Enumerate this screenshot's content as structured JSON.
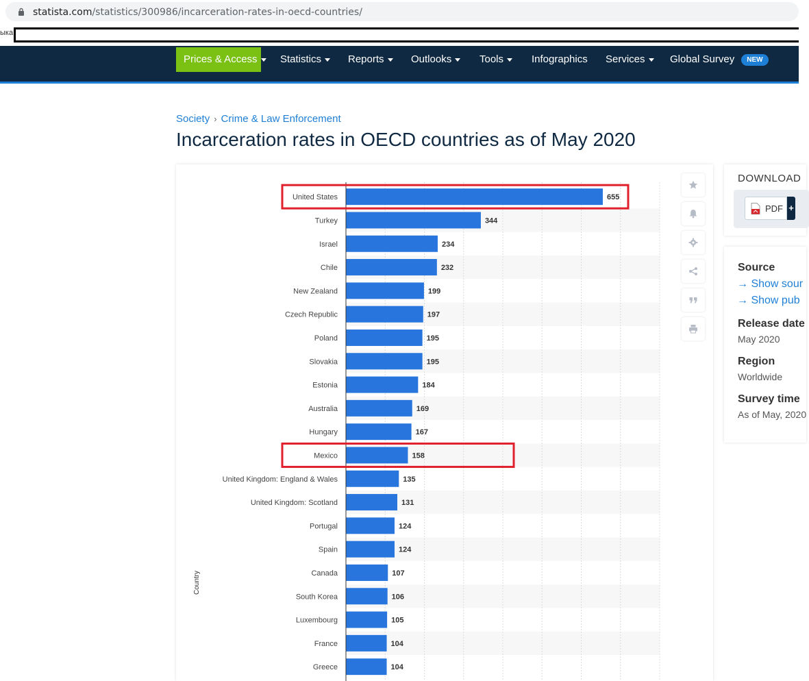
{
  "browser": {
    "url_host": "statista.com",
    "url_path": "/statistics/300986/incarceration-rates-in-oecd-countries/",
    "bookmark_text": "ыка"
  },
  "nav": {
    "items": [
      {
        "label": "Prices & Access"
      },
      {
        "label": "Statistics"
      },
      {
        "label": "Reports"
      },
      {
        "label": "Outlooks"
      },
      {
        "label": "Tools"
      },
      {
        "label": "Infographics"
      },
      {
        "label": "Services"
      },
      {
        "label": "Global Survey"
      }
    ],
    "new_badge": "NEW"
  },
  "breadcrumb": {
    "level1": "Society",
    "separator": "›",
    "level2": "Crime & Law Enforcement"
  },
  "page_title": "Incarceration rates in OECD countries as of May 2020",
  "chart_data": {
    "type": "bar",
    "orientation": "horizontal",
    "categories": [
      "United States",
      "Turkey",
      "Israel",
      "Chile",
      "New Zealand",
      "Czech Republic",
      "Poland",
      "Slovakia",
      "Estonia",
      "Australia",
      "Hungary",
      "Mexico",
      "United Kingdom: England & Wales",
      "United Kingdom: Scotland",
      "Portugal",
      "Spain",
      "Canada",
      "South Korea",
      "Luxembourg",
      "France",
      "Greece"
    ],
    "values": [
      655,
      344,
      234,
      232,
      199,
      197,
      195,
      195,
      184,
      169,
      167,
      158,
      135,
      131,
      124,
      124,
      107,
      106,
      105,
      104,
      104
    ],
    "ylabel": "Country",
    "xlim": [
      0,
      800
    ],
    "bar_color": "#2876dd",
    "highlighted": [
      "United States",
      "Mexico"
    ],
    "highlight_color": "#e0202c"
  },
  "tools": {
    "icons": [
      "star-icon",
      "bell-icon",
      "gear-icon",
      "share-icon",
      "quote-icon",
      "print-icon"
    ]
  },
  "download": {
    "title": "DOWNLOAD",
    "pdf_label": "PDF",
    "plus_label": "+"
  },
  "info": {
    "source_heading": "Source",
    "source_link_1": "→ Show sour",
    "source_link_2": "→ Show pub",
    "release_heading": "Release date",
    "release_value": "May 2020",
    "region_heading": "Region",
    "region_value": "Worldwide",
    "survey_heading": "Survey time",
    "survey_value": "As of May, 2020"
  }
}
